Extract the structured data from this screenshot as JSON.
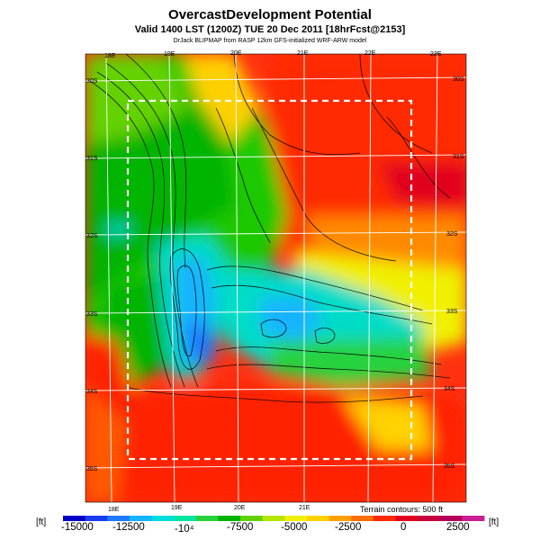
{
  "header": {
    "title": "OvercastDevelopment Potential",
    "subtitle": "Valid 1400 LST (1200Z) TUE 20 Dec 2011 [18hrFcst@2153]",
    "credit": "DrJack BLIPMAP from RASP 12km GFS-initialized WRF-ARW model"
  },
  "map": {
    "lon_labels": [
      "18E",
      "19E",
      "20E",
      "21E",
      "22E",
      "23E"
    ],
    "lat_labels": [
      "30S",
      "31S",
      "32S",
      "33S",
      "34S",
      "35S"
    ],
    "contour_note": "Terrain contours: 500 ft"
  },
  "colorbar": {
    "unit_left": "[ft]",
    "unit_right": "[ft]",
    "tick_labels": [
      "-15000",
      "-12500",
      "-10⁴",
      "-7500",
      "-5000",
      "-2500",
      "0",
      "2500"
    ],
    "colors": [
      "#0000c8",
      "#1a3cf0",
      "#1e78ff",
      "#14b4ff",
      "#00dcdc",
      "#00e6a0",
      "#28d23c",
      "#00b400",
      "#64d200",
      "#b4e600",
      "#f0f000",
      "#ffd200",
      "#ffa000",
      "#ff6e00",
      "#ff2800",
      "#e1001e",
      "#c8003c",
      "#b4005a",
      "#c81e96"
    ]
  }
}
